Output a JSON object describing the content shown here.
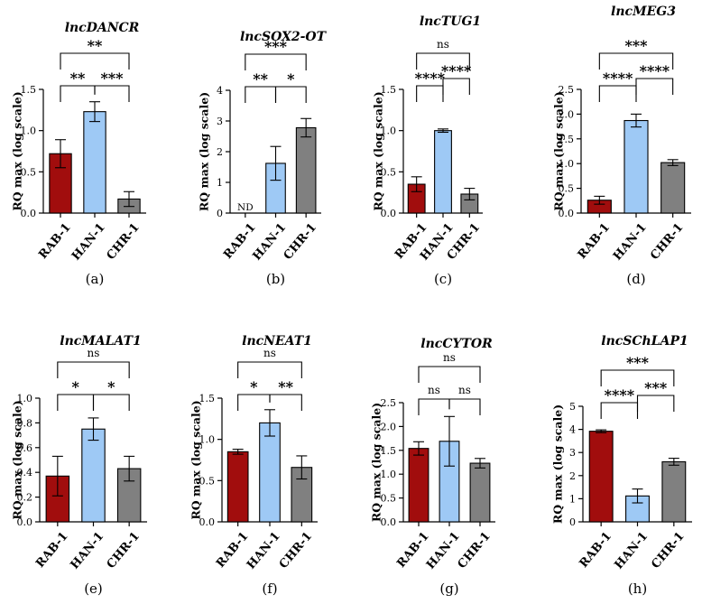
{
  "chart_data": [
    {
      "type": "bar",
      "panel_label": "(a)",
      "title": "lncDANCR",
      "ylabel": "RQ max (log scale)",
      "ylim": [
        0,
        1.5
      ],
      "yticks": [
        0,
        0.5,
        1.0,
        1.5
      ],
      "tick_labels": [
        "0.0",
        "0.5",
        "1.0",
        "1.5"
      ],
      "categories": [
        "RAB-1",
        "HAN-1",
        "CHR-1"
      ],
      "values": [
        0.72,
        1.23,
        0.17
      ],
      "errors": [
        0.17,
        0.12,
        0.09
      ],
      "bar_labels": [
        "",
        "",
        ""
      ],
      "significance": [
        {
          "from": 0,
          "to": 2,
          "label": "**",
          "level": 3
        },
        {
          "from": 0,
          "to": 1,
          "label": "**",
          "level": 1
        },
        {
          "from": 1,
          "to": 2,
          "label": "***",
          "level": 1
        }
      ]
    },
    {
      "type": "bar",
      "panel_label": "(b)",
      "title": "lncSOX2-OT",
      "ylabel": "RQ max (log scale)",
      "ylim": [
        0,
        4
      ],
      "yticks": [
        0,
        1,
        2,
        3,
        4
      ],
      "tick_labels": [
        "0",
        "1",
        "2",
        "3",
        "4"
      ],
      "categories": [
        "RAB-1",
        "HAN-1",
        "CHR-1"
      ],
      "values": [
        0,
        1.62,
        2.78
      ],
      "errors": [
        0,
        0.55,
        0.3
      ],
      "bar_labels": [
        "ND",
        "",
        ""
      ],
      "significance": [
        {
          "from": 0,
          "to": 2,
          "label": "***",
          "level": 3
        },
        {
          "from": 0,
          "to": 1,
          "label": "**",
          "level": 1
        },
        {
          "from": 1,
          "to": 2,
          "label": "*",
          "level": 1
        }
      ]
    },
    {
      "type": "bar",
      "panel_label": "(c)",
      "title": "lncTUG1",
      "ylabel": "RQ max (log scale)",
      "ylim": [
        0,
        1.5
      ],
      "yticks": [
        0,
        0.5,
        1.0,
        1.5
      ],
      "tick_labels": [
        "0.0",
        "0.5",
        "1.0",
        "1.5"
      ],
      "categories": [
        "RAB-1",
        "HAN-1",
        "CHR-1"
      ],
      "values": [
        0.35,
        1.0,
        0.23
      ],
      "errors": [
        0.09,
        0.02,
        0.07
      ],
      "bar_labels": [
        "",
        "",
        ""
      ],
      "significance": [
        {
          "from": 0,
          "to": 2,
          "label": "ns",
          "level": 3
        },
        {
          "from": 0,
          "to": 1,
          "label": "****",
          "level": 1
        },
        {
          "from": 1,
          "to": 2,
          "label": "****",
          "level": 2
        }
      ]
    },
    {
      "type": "bar",
      "panel_label": "(d)",
      "title": "lncMEG3",
      "ylabel": "RQ max (log scale)",
      "ylim": [
        0,
        2.5
      ],
      "yticks": [
        0,
        0.5,
        1.0,
        1.5,
        2.0,
        2.5
      ],
      "tick_labels": [
        "0.0",
        "0.5",
        "1.0",
        "1.5",
        "2.0",
        "2.5"
      ],
      "categories": [
        "RAB-1",
        "HAN-1",
        "CHR-1"
      ],
      "values": [
        0.26,
        1.87,
        1.02
      ],
      "errors": [
        0.08,
        0.13,
        0.06
      ],
      "bar_labels": [
        "",
        "",
        ""
      ],
      "significance": [
        {
          "from": 0,
          "to": 2,
          "label": "***",
          "level": 3
        },
        {
          "from": 0,
          "to": 1,
          "label": "****",
          "level": 1
        },
        {
          "from": 1,
          "to": 2,
          "label": "****",
          "level": 2
        }
      ]
    },
    {
      "type": "bar",
      "panel_label": "(e)",
      "title": "lncMALAT1",
      "ylabel": "RQ max (log scale)",
      "ylim": [
        0,
        1.0
      ],
      "yticks": [
        0,
        0.2,
        0.4,
        0.6,
        0.8,
        1.0
      ],
      "tick_labels": [
        "0.0",
        "0.2",
        "0.4",
        "0.6",
        "0.8",
        "1.0"
      ],
      "categories": [
        "RAB-1",
        "HAN-1",
        "CHR-1"
      ],
      "values": [
        0.37,
        0.75,
        0.43
      ],
      "errors": [
        0.16,
        0.09,
        0.1
      ],
      "bar_labels": [
        "",
        "",
        ""
      ],
      "significance": [
        {
          "from": 0,
          "to": 2,
          "label": "ns",
          "level": 3
        },
        {
          "from": 0,
          "to": 1,
          "label": "*",
          "level": 1
        },
        {
          "from": 1,
          "to": 2,
          "label": "*",
          "level": 1
        }
      ]
    },
    {
      "type": "bar",
      "panel_label": "(f)",
      "title": "lncNEAT1",
      "ylabel": "RQ max (log scale)",
      "ylim": [
        0,
        1.5
      ],
      "yticks": [
        0,
        0.5,
        1.0,
        1.5
      ],
      "tick_labels": [
        "0.0",
        "0.5",
        "1.0",
        "1.5"
      ],
      "categories": [
        "RAB-1",
        "HAN-1",
        "CHR-1"
      ],
      "values": [
        0.85,
        1.2,
        0.66
      ],
      "errors": [
        0.03,
        0.16,
        0.14
      ],
      "bar_labels": [
        "",
        "",
        ""
      ],
      "significance": [
        {
          "from": 0,
          "to": 2,
          "label": "ns",
          "level": 3
        },
        {
          "from": 0,
          "to": 1,
          "label": "*",
          "level": 1
        },
        {
          "from": 1,
          "to": 2,
          "label": "**",
          "level": 1
        }
      ]
    },
    {
      "type": "bar",
      "panel_label": "(g)",
      "title": "lncCYTOR",
      "ylabel": "RQ max (log scale)",
      "ylim": [
        0,
        2.5
      ],
      "yticks": [
        0,
        0.5,
        1.0,
        1.5,
        2.0,
        2.5
      ],
      "tick_labels": [
        "0.0",
        "0.5",
        "1.0",
        "1.5",
        "2.0",
        "2.5"
      ],
      "categories": [
        "RAB-1",
        "HAN-1",
        "CHR-1"
      ],
      "values": [
        1.54,
        1.69,
        1.23
      ],
      "errors": [
        0.14,
        0.52,
        0.1
      ],
      "bar_labels": [
        "",
        "",
        ""
      ],
      "significance": [
        {
          "from": 0,
          "to": 2,
          "label": "ns",
          "level": 3
        },
        {
          "from": 0,
          "to": 1,
          "label": "ns",
          "level": 1
        },
        {
          "from": 1,
          "to": 2,
          "label": "ns",
          "level": 1
        }
      ]
    },
    {
      "type": "bar",
      "panel_label": "(h)",
      "title": "lncSChLAP1",
      "ylabel": "RQ max (log scale)",
      "ylim": [
        0,
        5
      ],
      "yticks": [
        0,
        1,
        2,
        3,
        4,
        5
      ],
      "tick_labels": [
        "0",
        "1",
        "2",
        "3",
        "4",
        "5"
      ],
      "categories": [
        "RAB-1",
        "HAN-1",
        "CHR-1"
      ],
      "values": [
        3.92,
        1.12,
        2.6
      ],
      "errors": [
        0.06,
        0.3,
        0.15
      ],
      "bar_labels": [
        "",
        "",
        ""
      ],
      "significance": [
        {
          "from": 0,
          "to": 2,
          "label": "***",
          "level": 3
        },
        {
          "from": 0,
          "to": 1,
          "label": "****",
          "level": 1
        },
        {
          "from": 1,
          "to": 2,
          "label": "***",
          "level": 2
        }
      ]
    }
  ],
  "colors": {
    "RAB-1": "#a10d0d",
    "HAN-1": "#9ec9f5",
    "CHR-1": "#808080",
    "axis": "#000000"
  }
}
